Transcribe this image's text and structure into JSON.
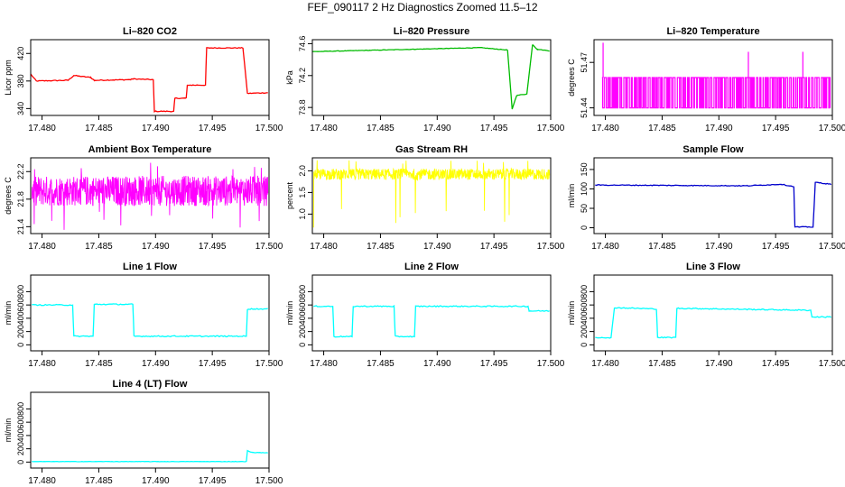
{
  "figure": {
    "title": "FEF_090117  2 Hz Diagnostics Zoomed 11.5–12"
  },
  "chart_data": [
    {
      "type": "line",
      "title": "Li–820 CO2",
      "xlabel": "",
      "ylabel": "Licor ppm",
      "color": "#ff0000",
      "style": "step",
      "noise": 0.6,
      "xlim": [
        17.479,
        17.5
      ],
      "ylim": [
        330,
        440
      ],
      "xticks": [
        "17.480",
        "17.485",
        "17.490",
        "17.495",
        "17.500"
      ],
      "yticks": [
        "340",
        "380",
        "420"
      ],
      "series": [
        {
          "values": [
            [
              17.479,
              390
            ],
            [
              17.4795,
              380
            ],
            [
              17.4823,
              381
            ],
            [
              17.4828,
              388
            ],
            [
              17.4843,
              385
            ],
            [
              17.4846,
              381
            ],
            [
              17.4878,
              382
            ],
            [
              17.488,
              383
            ],
            [
              17.4898,
              382
            ],
            [
              17.4899,
              336
            ],
            [
              17.4916,
              336
            ],
            [
              17.4917,
              355
            ],
            [
              17.4927,
              355
            ],
            [
              17.4928,
              374
            ],
            [
              17.4944,
              374
            ],
            [
              17.4945,
              428
            ],
            [
              17.4977,
              428
            ],
            [
              17.4981,
              362
            ],
            [
              17.4999,
              363
            ]
          ]
        }
      ]
    },
    {
      "type": "line",
      "title": "Li–820 Pressure",
      "xlabel": "",
      "ylabel": "kPa",
      "color": "#00bb00",
      "style": "step",
      "noise": 0.003,
      "xlim": [
        17.479,
        17.5
      ],
      "ylim": [
        73.7,
        74.65
      ],
      "xticks": [
        "17.480",
        "17.485",
        "17.490",
        "17.495",
        "17.500"
      ],
      "yticks": [
        "73.8",
        "74.2",
        "74.6"
      ],
      "series": [
        {
          "values": [
            [
              17.479,
              74.5
            ],
            [
              17.488,
              74.53
            ],
            [
              17.4938,
              74.55
            ],
            [
              17.4962,
              74.52
            ],
            [
              17.4966,
              73.78
            ],
            [
              17.497,
              73.95
            ],
            [
              17.4979,
              73.97
            ],
            [
              17.4984,
              74.59
            ],
            [
              17.4988,
              74.53
            ],
            [
              17.4999,
              74.51
            ]
          ]
        }
      ]
    },
    {
      "type": "line",
      "title": "Li–820 Temperature",
      "xlabel": "",
      "ylabel": "degrees C",
      "color": "#ff00ff",
      "style": "toggle",
      "xlim": [
        17.479,
        17.5
      ],
      "ylim": [
        51.435,
        51.485
      ],
      "xticks": [
        "17.480",
        "17.485",
        "17.490",
        "17.495",
        "17.500"
      ],
      "yticks": [
        "51.44",
        "51.47"
      ],
      "series": [
        {
          "low": 51.44,
          "high": 51.46,
          "spikes": [
            [
              17.4798,
              51.483
            ],
            [
              17.4926,
              51.477
            ],
            [
              17.4974,
              51.477
            ]
          ],
          "range": [
            17.4797,
            17.4998
          ]
        }
      ]
    },
    {
      "type": "line",
      "title": "Ambient Box Temperature",
      "xlabel": "",
      "ylabel": "degrees C",
      "color": "#ff00ff",
      "style": "noisy",
      "xlim": [
        17.479,
        17.5
      ],
      "ylim": [
        21.3,
        22.4
      ],
      "xticks": [
        "17.480",
        "17.485",
        "17.490",
        "17.495",
        "17.500"
      ],
      "yticks": [
        "21.4",
        "21.8",
        "22.2"
      ],
      "series": [
        {
          "base": 21.92,
          "amp": 0.22,
          "spike_lo": 21.35,
          "spike_hi": 22.35,
          "range": [
            17.4791,
            17.4999
          ]
        }
      ]
    },
    {
      "type": "line",
      "title": "Gas Stream RH",
      "xlabel": "",
      "ylabel": "percent",
      "color": "#ffff00",
      "style": "noisy",
      "xlim": [
        17.479,
        17.5
      ],
      "ylim": [
        0.55,
        2.3
      ],
      "xticks": [
        "17.480",
        "17.485",
        "17.490",
        "17.495",
        "17.500"
      ],
      "yticks": [
        "1.0",
        "1.5",
        "2.0"
      ],
      "series": [
        {
          "base": 1.92,
          "amp": 0.13,
          "spike_lo": 0.65,
          "spike_hi": 2.25,
          "range": [
            17.4791,
            17.4999
          ]
        }
      ]
    },
    {
      "type": "line",
      "title": "Sample Flow",
      "xlabel": "",
      "ylabel": "ml/min",
      "color": "#0000cc",
      "style": "step",
      "noise": 1,
      "xlim": [
        17.479,
        17.5
      ],
      "ylim": [
        -15,
        180
      ],
      "xticks": [
        "17.480",
        "17.485",
        "17.490",
        "17.495",
        "17.500"
      ],
      "yticks": [
        "0",
        "50",
        "100",
        "150"
      ],
      "series": [
        {
          "values": [
            [
              17.4791,
              110
            ],
            [
              17.4925,
              108
            ],
            [
              17.4955,
              112
            ],
            [
              17.4966,
              106
            ],
            [
              17.4967,
              2
            ],
            [
              17.4983,
              2
            ],
            [
              17.4985,
              117
            ],
            [
              17.4999,
              112
            ]
          ]
        }
      ]
    },
    {
      "type": "line",
      "title": "Line 1 Flow",
      "xlabel": "",
      "ylabel": "ml/min",
      "color": "#00ffff",
      "style": "step",
      "noise": 8,
      "xlim": [
        17.479,
        17.5
      ],
      "ylim": [
        -90,
        1050
      ],
      "xticks": [
        "17.480",
        "17.485",
        "17.490",
        "17.495",
        "17.500"
      ],
      "yticks": [
        "0",
        "200",
        "400",
        "600",
        "800"
      ],
      "series": [
        {
          "values": [
            [
              17.4791,
              600
            ],
            [
              17.4827,
              600
            ],
            [
              17.4828,
              130
            ],
            [
              17.4845,
              130
            ],
            [
              17.4846,
              610
            ],
            [
              17.488,
              610
            ],
            [
              17.4881,
              130
            ],
            [
              17.498,
              130
            ],
            [
              17.4981,
              540
            ],
            [
              17.4999,
              540
            ]
          ]
        }
      ]
    },
    {
      "type": "line",
      "title": "Line 2 Flow",
      "xlabel": "",
      "ylabel": "ml/min",
      "color": "#00ffff",
      "style": "step",
      "noise": 8,
      "xlim": [
        17.479,
        17.5
      ],
      "ylim": [
        -90,
        1050
      ],
      "xticks": [
        "17.480",
        "17.485",
        "17.490",
        "17.495",
        "17.500"
      ],
      "yticks": [
        "0",
        "200",
        "400",
        "600",
        "800"
      ],
      "series": [
        {
          "values": [
            [
              17.4791,
              580
            ],
            [
              17.4808,
              580
            ],
            [
              17.4809,
              125
            ],
            [
              17.4825,
              125
            ],
            [
              17.4826,
              580
            ],
            [
              17.4862,
              580
            ],
            [
              17.4863,
              125
            ],
            [
              17.488,
              125
            ],
            [
              17.4881,
              580
            ],
            [
              17.498,
              580
            ],
            [
              17.4981,
              510
            ],
            [
              17.4999,
              510
            ]
          ]
        }
      ]
    },
    {
      "type": "line",
      "title": "Line 3 Flow",
      "xlabel": "",
      "ylabel": "ml/min",
      "color": "#00ffff",
      "style": "step",
      "noise": 8,
      "xlim": [
        17.479,
        17.5
      ],
      "ylim": [
        -90,
        1050
      ],
      "xticks": [
        "17.480",
        "17.485",
        "17.490",
        "17.495",
        "17.500"
      ],
      "yticks": [
        "0",
        "200",
        "400",
        "600",
        "800"
      ],
      "series": [
        {
          "values": [
            [
              17.4791,
              110
            ],
            [
              17.4805,
              110
            ],
            [
              17.4808,
              560
            ],
            [
              17.4845,
              540
            ],
            [
              17.4846,
              110
            ],
            [
              17.4862,
              110
            ],
            [
              17.4863,
              550
            ],
            [
              17.4981,
              520
            ],
            [
              17.4982,
              420
            ],
            [
              17.4999,
              420
            ]
          ]
        }
      ]
    },
    {
      "type": "line",
      "title": "Line 4 (LT) Flow",
      "xlabel": "",
      "ylabel": "ml/min",
      "color": "#00ffff",
      "style": "step",
      "noise": 3,
      "xlim": [
        17.479,
        17.5
      ],
      "ylim": [
        -90,
        1050
      ],
      "xticks": [
        "17.480",
        "17.485",
        "17.490",
        "17.495",
        "17.500"
      ],
      "yticks": [
        "0",
        "200",
        "400",
        "600",
        "800"
      ],
      "series": [
        {
          "values": [
            [
              17.4791,
              8
            ],
            [
              17.498,
              8
            ],
            [
              17.4981,
              170
            ],
            [
              17.4985,
              145
            ],
            [
              17.4999,
              140
            ]
          ]
        }
      ]
    }
  ]
}
